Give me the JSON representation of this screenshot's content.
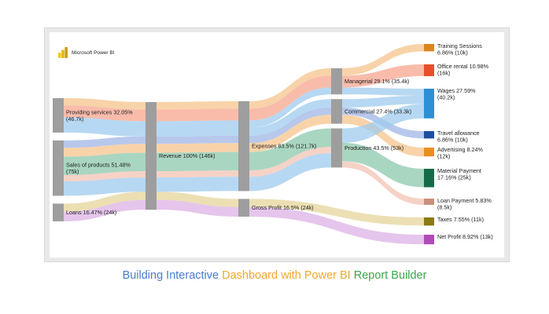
{
  "app": {
    "name": "Microsoft Power BI"
  },
  "caption": {
    "part1": "Building Interactive",
    "part2": "Dashboard with Power BI",
    "part3": "Report Builder"
  },
  "colors": {
    "part1": "#4a7bd0",
    "part2": "#f0a82a",
    "part3": "#3aa54a",
    "node": "#9e9e9e"
  },
  "chart_data": {
    "type": "sankey",
    "title": "",
    "nodes": [
      {
        "id": "providing",
        "label1": "Providing services 32.05%",
        "label2": "(46.7k)",
        "value": 46.7,
        "column": 0
      },
      {
        "id": "sales",
        "label1": "Sales of products 51.48%",
        "label2": "(75k)",
        "value": 75,
        "column": 0
      },
      {
        "id": "loans",
        "label1": "Loans 16.47% (24k)",
        "label2": "",
        "value": 24,
        "column": 0
      },
      {
        "id": "revenue",
        "label1": "Revenue 100% (146k)",
        "label2": "",
        "value": 146,
        "column": 1
      },
      {
        "id": "expenses",
        "label1": "Expenses 83.5% (121.7k)",
        "label2": "",
        "value": 121.7,
        "column": 2
      },
      {
        "id": "gross",
        "label1": "Gross Profit 16.5% (24k)",
        "label2": "",
        "value": 24,
        "column": 2
      },
      {
        "id": "managerial",
        "label1": "Managerial 29.1% (35.4k)",
        "label2": "",
        "value": 35.4,
        "column": 3
      },
      {
        "id": "commercial",
        "label1": "Commercial 27.4% (33.3k)",
        "label2": "",
        "value": 33.3,
        "column": 3
      },
      {
        "id": "production",
        "label1": "Production 43.5% (53k)",
        "label2": "",
        "value": 53,
        "column": 3
      },
      {
        "id": "training",
        "label1": "Training Sessions",
        "label2": "6.86% (10k)",
        "value": 10,
        "column": 4,
        "color": "#d8851f"
      },
      {
        "id": "office",
        "label1": "Office rental 10.98%",
        "label2": "(16k)",
        "value": 16,
        "column": 4,
        "color": "#e8502a"
      },
      {
        "id": "wages",
        "label1": "Wages 27.59%",
        "label2": "(40.2k)",
        "value": 40.2,
        "column": 4,
        "color": "#2d8fd5"
      },
      {
        "id": "travel",
        "label1": "Travel allowance",
        "label2": "6.86% (10k)",
        "value": 10,
        "column": 4,
        "color": "#1f4e9e"
      },
      {
        "id": "advertising",
        "label1": "Advertising 8.24%",
        "label2": "(12k)",
        "value": 12,
        "column": 4,
        "color": "#e8901f"
      },
      {
        "id": "material",
        "label1": "Material Payment",
        "label2": "17.16% (25k)",
        "value": 25,
        "column": 4,
        "color": "#156b48"
      },
      {
        "id": "loanpay",
        "label1": "Loan Payment 5.83%",
        "label2": "(8.5k)",
        "value": 8.5,
        "column": 4,
        "color": "#c98f7e"
      },
      {
        "id": "taxes",
        "label1": "Taxes 7.55% (11k)",
        "label2": "",
        "value": 11,
        "column": 4,
        "color": "#8a7a10"
      },
      {
        "id": "netprofit",
        "label1": "Net Profit 8.92% (13k)",
        "label2": "",
        "value": 13,
        "column": 4,
        "color": "#b04bb8"
      }
    ],
    "links": [
      {
        "source": "providing",
        "target": "revenue",
        "value": 10,
        "color": "#f6c48c"
      },
      {
        "source": "providing",
        "target": "revenue",
        "value": 16,
        "color": "#f7a58f"
      },
      {
        "source": "providing",
        "target": "revenue",
        "value": 20.7,
        "color": "#9fcbee"
      },
      {
        "source": "sales",
        "target": "revenue",
        "value": 10,
        "color": "#9fb6e6"
      },
      {
        "source": "sales",
        "target": "revenue",
        "value": 12,
        "color": "#f6c48c"
      },
      {
        "source": "sales",
        "target": "revenue",
        "value": 25,
        "color": "#8cc8ac"
      },
      {
        "source": "sales",
        "target": "revenue",
        "value": 8.5,
        "color": "#f3c3b3"
      },
      {
        "source": "sales",
        "target": "revenue",
        "value": 19.5,
        "color": "#9fcbee"
      },
      {
        "source": "loans",
        "target": "revenue",
        "value": 11,
        "color": "#e6d49a"
      },
      {
        "source": "loans",
        "target": "revenue",
        "value": 13,
        "color": "#dcb1e6"
      },
      {
        "source": "revenue",
        "target": "expenses",
        "value": 10,
        "color": "#f6c48c"
      },
      {
        "source": "revenue",
        "target": "expenses",
        "value": 16,
        "color": "#f7a58f"
      },
      {
        "source": "revenue",
        "target": "expenses",
        "value": 20.7,
        "color": "#9fcbee"
      },
      {
        "source": "revenue",
        "target": "expenses",
        "value": 10,
        "color": "#9fb6e6"
      },
      {
        "source": "revenue",
        "target": "expenses",
        "value": 12,
        "color": "#f6c48c"
      },
      {
        "source": "revenue",
        "target": "expenses",
        "value": 25,
        "color": "#8cc8ac"
      },
      {
        "source": "revenue",
        "target": "expenses",
        "value": 8.5,
        "color": "#f3c3b3"
      },
      {
        "source": "revenue",
        "target": "expenses",
        "value": 19.5,
        "color": "#9fcbee"
      },
      {
        "source": "revenue",
        "target": "gross",
        "value": 11,
        "color": "#e6d49a"
      },
      {
        "source": "revenue",
        "target": "gross",
        "value": 13,
        "color": "#dcb1e6"
      },
      {
        "source": "expenses",
        "target": "managerial",
        "value": 10,
        "color": "#f6c48c"
      },
      {
        "source": "expenses",
        "target": "managerial",
        "value": 16,
        "color": "#f7a58f"
      },
      {
        "source": "expenses",
        "target": "managerial",
        "value": 9.4,
        "color": "#9fcbee"
      },
      {
        "source": "expenses",
        "target": "commercial",
        "value": 11.3,
        "color": "#9fcbee"
      },
      {
        "source": "expenses",
        "target": "commercial",
        "value": 10,
        "color": "#9fb6e6"
      },
      {
        "source": "expenses",
        "target": "commercial",
        "value": 12,
        "color": "#f6c48c"
      },
      {
        "source": "expenses",
        "target": "production",
        "value": 25,
        "color": "#8cc8ac"
      },
      {
        "source": "expenses",
        "target": "production",
        "value": 8.5,
        "color": "#f3c3b3"
      },
      {
        "source": "expenses",
        "target": "production",
        "value": 19.5,
        "color": "#9fcbee"
      },
      {
        "source": "gross",
        "target": "taxes",
        "value": 11,
        "color": "#e6d49a"
      },
      {
        "source": "gross",
        "target": "netprofit",
        "value": 13,
        "color": "#dcb1e6"
      },
      {
        "source": "managerial",
        "target": "training",
        "value": 10,
        "color": "#f6c48c"
      },
      {
        "source": "managerial",
        "target": "office",
        "value": 16,
        "color": "#f7a58f"
      },
      {
        "source": "managerial",
        "target": "wages",
        "value": 9.4,
        "color": "#9fcbee"
      },
      {
        "source": "commercial",
        "target": "wages",
        "value": 11.3,
        "color": "#9fcbee"
      },
      {
        "source": "commercial",
        "target": "travel",
        "value": 10,
        "color": "#9fb6e6"
      },
      {
        "source": "commercial",
        "target": "advertising",
        "value": 12,
        "color": "#f6c48c"
      },
      {
        "source": "production",
        "target": "wages",
        "value": 19.5,
        "color": "#9fcbee"
      },
      {
        "source": "production",
        "target": "material",
        "value": 25,
        "color": "#8cc8ac"
      },
      {
        "source": "production",
        "target": "loanpay",
        "value": 8.5,
        "color": "#f3c3b3"
      }
    ]
  }
}
